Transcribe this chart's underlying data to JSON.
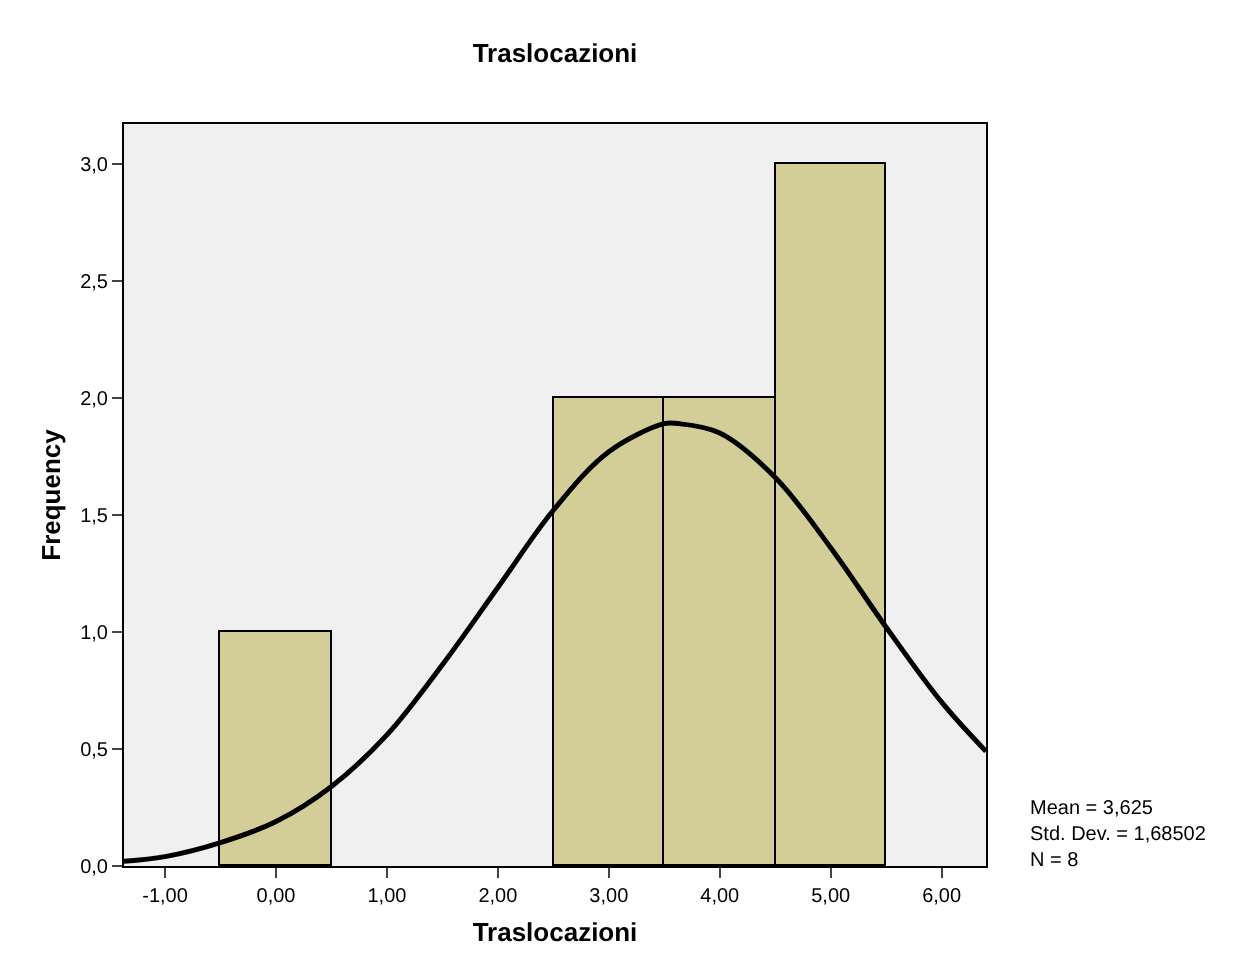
{
  "chart_data": {
    "type": "histogram",
    "title": "Traslocazioni",
    "xlabel": "Traslocazioni",
    "ylabel": "Frequency",
    "series": [
      {
        "color": "#d3ce97",
        "bins": [
          -0.5,
          0.5,
          1.5,
          2.5,
          3.5,
          4.5,
          5.5
        ],
        "values": [
          1,
          0,
          0,
          2,
          2,
          3
        ]
      },
      {
        "type": "line",
        "color": "#000000",
        "x": [
          -1.37,
          -1,
          -0.5,
          0,
          0.5,
          1,
          1.5,
          2,
          2.5,
          3,
          3.5,
          3.625,
          4,
          4.5,
          5,
          5.5,
          6,
          6.4
        ],
        "values": [
          0.02,
          0.04,
          0.1,
          0.19,
          0.34,
          0.56,
          0.86,
          1.19,
          1.52,
          1.77,
          1.89,
          1.89,
          1.85,
          1.66,
          1.36,
          1.02,
          0.7,
          0.49
        ]
      }
    ],
    "xlim": [
      -1.37,
      6.4
    ],
    "xticks": [
      {
        "value": -1,
        "label": "-1,00"
      },
      {
        "value": 0,
        "label": "0,00"
      },
      {
        "value": 1,
        "label": "1,00"
      },
      {
        "value": 2,
        "label": "2,00"
      },
      {
        "value": 3,
        "label": "3,00"
      },
      {
        "value": 4,
        "label": "4,00"
      },
      {
        "value": 5,
        "label": "5,00"
      },
      {
        "value": 6,
        "label": "6,00"
      }
    ],
    "ylim": [
      0,
      3.17
    ],
    "yticks": [
      {
        "value": 0,
        "label": "0,0"
      },
      {
        "value": 0.5,
        "label": "0,5"
      },
      {
        "value": 1,
        "label": "1,0"
      },
      {
        "value": 1.5,
        "label": "1,5"
      },
      {
        "value": 2,
        "label": "2,0"
      },
      {
        "value": 2.5,
        "label": "2,5"
      },
      {
        "value": 3,
        "label": "3,0"
      }
    ],
    "annotations": [
      "Mean = 3,625",
      "Std. Dev. = 1,68502",
      "N = 8"
    ],
    "grid": false
  }
}
